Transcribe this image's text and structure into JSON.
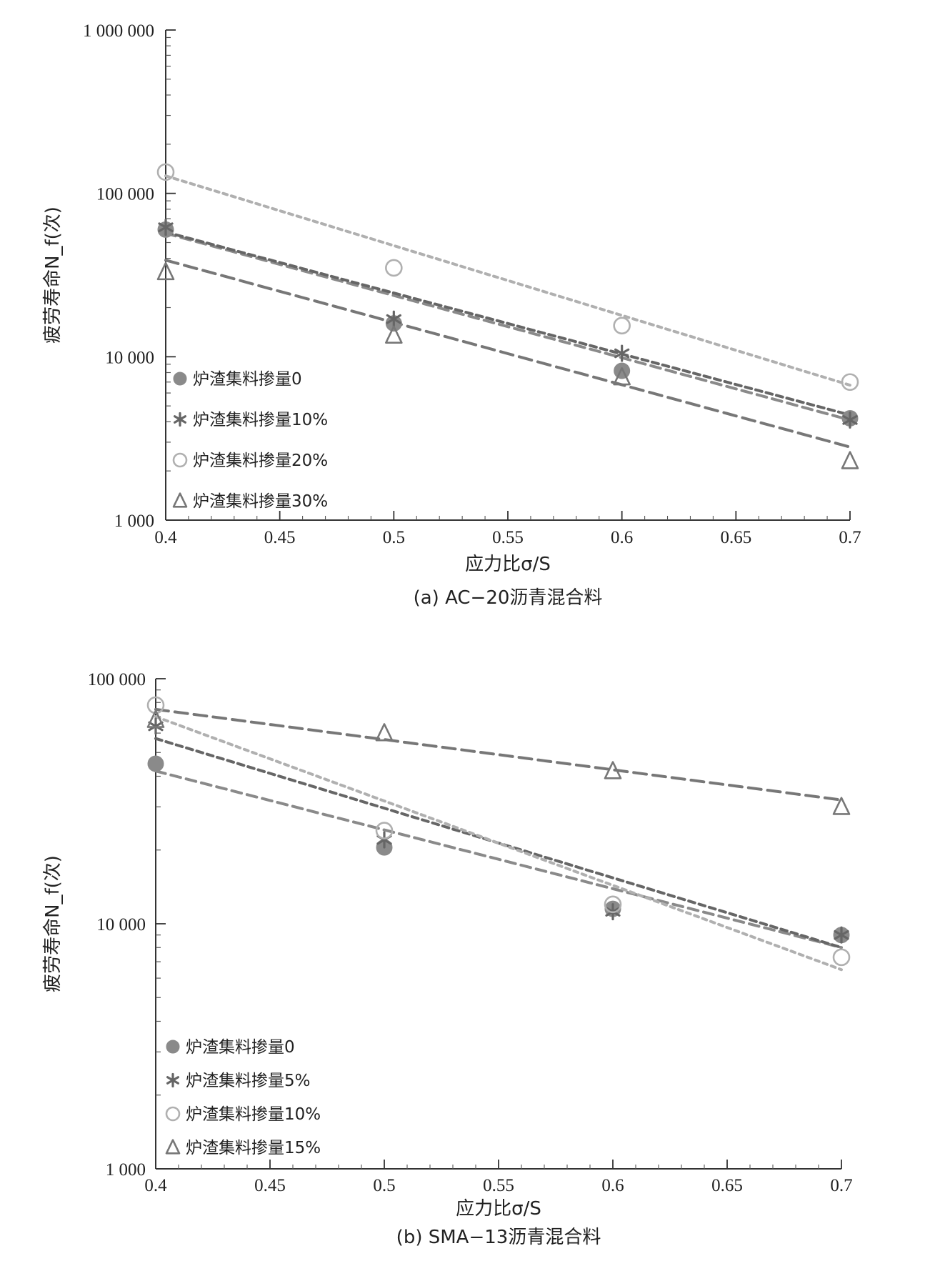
{
  "chart_data": [
    {
      "type": "scatter",
      "title": "(a) AC−20沥青混合料",
      "xlabel": "应力比σ/S",
      "ylabel": "疲劳寿命N_f(次)",
      "xlim": [
        0.4,
        0.7
      ],
      "ylim": [
        1000,
        1000000
      ],
      "yscale": "log",
      "x_ticks": [
        "0.4",
        "0.45",
        "0.5",
        "0.55",
        "0.6",
        "0.65",
        "0.7"
      ],
      "y_ticks": [
        "1 000",
        "10 000",
        "100 000",
        "1 000 000"
      ],
      "legend_position": "bottom-left",
      "trendlines": "exponential fit per series (dashed)",
      "series": [
        {
          "name": "炉渣集料掺量0",
          "marker": "filled-circle",
          "color": "#8a8a8a",
          "x": [
            0.4,
            0.5,
            0.6,
            0.7
          ],
          "y": [
            60000,
            16000,
            8200,
            4200
          ],
          "fit": {
            "x": [
              0.4,
              0.7
            ],
            "y": [
              57000,
              4100
            ]
          }
        },
        {
          "name": "炉渣集料掺量10%",
          "marker": "star",
          "color": "#666666",
          "x": [
            0.4,
            0.5,
            0.6,
            0.7
          ],
          "y": [
            62000,
            17000,
            10500,
            4100
          ],
          "fit": {
            "x": [
              0.4,
              0.7
            ],
            "y": [
              58000,
              4400
            ]
          }
        },
        {
          "name": "炉渣集料掺量20%",
          "marker": "open-circle",
          "color": "#b0b0b0",
          "x": [
            0.4,
            0.5,
            0.6,
            0.7
          ],
          "y": [
            135000,
            35000,
            15500,
            7000
          ],
          "fit": {
            "x": [
              0.4,
              0.7
            ],
            "y": [
              128000,
              6700
            ]
          }
        },
        {
          "name": "炉渣集料掺量30%",
          "marker": "open-triangle",
          "color": "#777777",
          "x": [
            0.4,
            0.5,
            0.6,
            0.7
          ],
          "y": [
            33000,
            13500,
            7500,
            2300
          ],
          "fit": {
            "x": [
              0.4,
              0.7
            ],
            "y": [
              39000,
              2800
            ]
          }
        }
      ]
    },
    {
      "type": "scatter",
      "title": "(b) SMA−13沥青混合料",
      "xlabel": "应力比σ/S",
      "ylabel": "疲劳寿命N_f(次)",
      "xlim": [
        0.4,
        0.7
      ],
      "ylim": [
        1000,
        100000
      ],
      "yscale": "log",
      "x_ticks": [
        "0.4",
        "0.45",
        "0.5",
        "0.55",
        "0.6",
        "0.65",
        "0.7"
      ],
      "y_ticks": [
        "1 000",
        "10 000",
        "100 000"
      ],
      "legend_position": "bottom-left",
      "trendlines": "exponential fit per series (dashed)",
      "series": [
        {
          "name": "炉渣集料掺量0",
          "marker": "filled-circle",
          "color": "#8a8a8a",
          "x": [
            0.4,
            0.5,
            0.6,
            0.7
          ],
          "y": [
            45000,
            20500,
            11500,
            9000
          ],
          "fit": {
            "x": [
              0.4,
              0.7
            ],
            "y": [
              42000,
              8000
            ]
          }
        },
        {
          "name": "炉渣集料掺量5%",
          "marker": "star",
          "color": "#666666",
          "x": [
            0.4,
            0.5,
            0.6,
            0.7
          ],
          "y": [
            64000,
            22000,
            11200,
            9000
          ],
          "fit": {
            "x": [
              0.4,
              0.7
            ],
            "y": [
              57000,
              8000
            ]
          }
        },
        {
          "name": "炉渣集料掺量10%",
          "marker": "open-circle",
          "color": "#b0b0b0",
          "x": [
            0.4,
            0.5,
            0.6,
            0.7
          ],
          "y": [
            78000,
            24000,
            12000,
            7300
          ],
          "fit": {
            "x": [
              0.4,
              0.7
            ],
            "y": [
              70000,
              6500
            ]
          }
        },
        {
          "name": "炉渣集料掺量15%",
          "marker": "open-triangle",
          "color": "#777777",
          "x": [
            0.4,
            0.5,
            0.6,
            0.7
          ],
          "y": [
            68000,
            60000,
            42000,
            30000
          ],
          "fit": {
            "x": [
              0.4,
              0.7
            ],
            "y": [
              75000,
              32000
            ]
          }
        }
      ]
    }
  ]
}
